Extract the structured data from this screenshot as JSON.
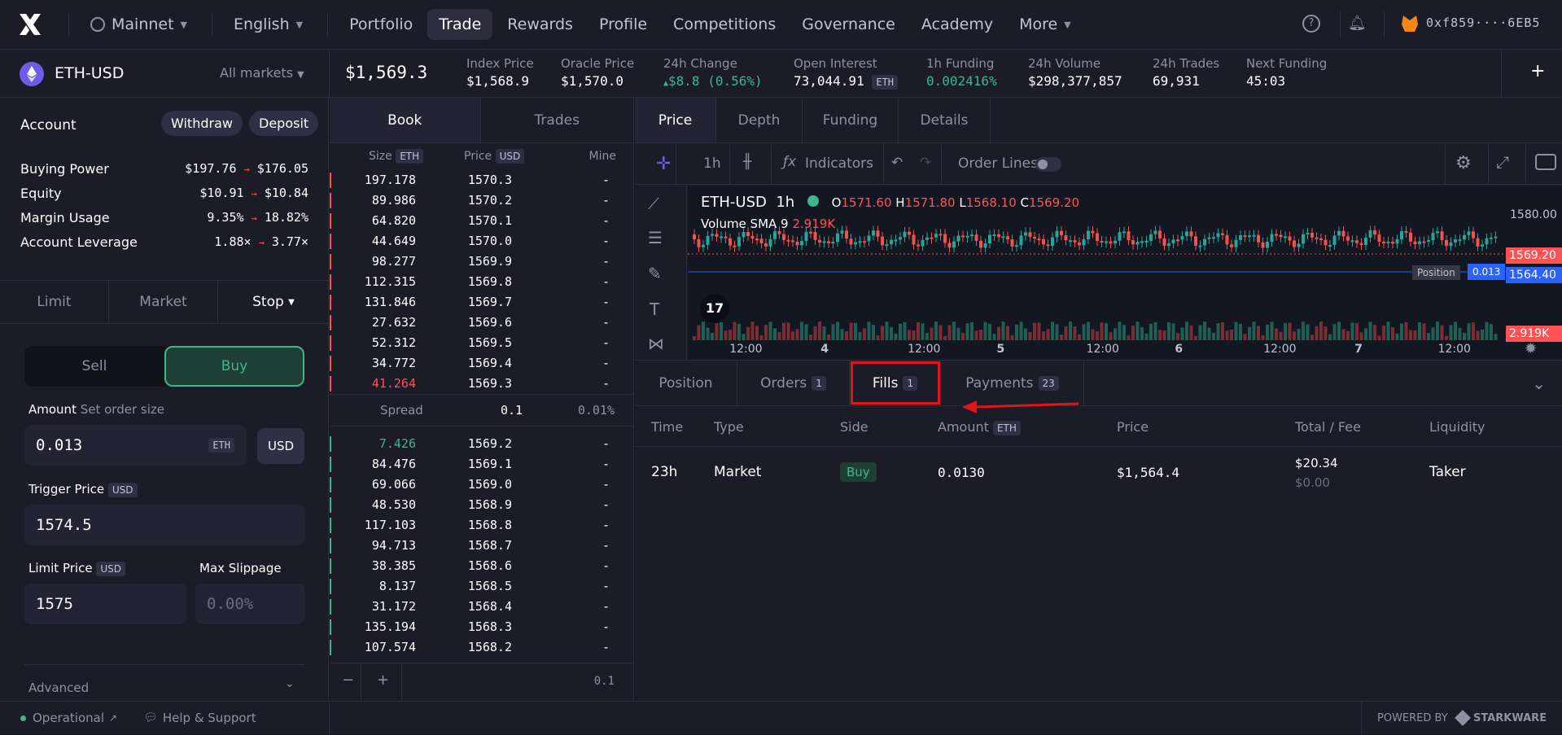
{
  "nav": {
    "network": "Mainnet",
    "language": "English",
    "items": [
      "Portfolio",
      "Trade",
      "Rewards",
      "Profile",
      "Competitions",
      "Governance",
      "Academy",
      "More"
    ],
    "active": "Trade",
    "wallet": "0xf859····6EB5"
  },
  "market": {
    "symbol": "ETH-USD",
    "all_markets": "All markets",
    "price": "$1,569.3",
    "stats": [
      {
        "label": "Index Price",
        "value": "$1,568.9"
      },
      {
        "label": "Oracle Price",
        "value": "$1,570.0"
      },
      {
        "label": "24h Change",
        "value": "$8.8 (0.56%)"
      },
      {
        "label": "Open Interest",
        "value": "73,044.91",
        "unit": "ETH"
      },
      {
        "label": "1h Funding",
        "value": "0.002416%"
      },
      {
        "label": "24h Volume",
        "value": "$298,377,857"
      },
      {
        "label": "24h Trades",
        "value": "69,931"
      },
      {
        "label": "Next Funding",
        "value": "45:03"
      }
    ]
  },
  "account": {
    "title": "Account",
    "withdraw": "Withdraw",
    "deposit": "Deposit",
    "rows": [
      {
        "label": "Buying Power",
        "from": "$197.76",
        "to": "$176.05"
      },
      {
        "label": "Equity",
        "from": "$10.91",
        "to": "$10.84"
      },
      {
        "label": "Margin Usage",
        "from": "9.35%",
        "to": "18.82%"
      },
      {
        "label": "Account Leverage",
        "from": "1.88×",
        "to": "3.77×"
      }
    ]
  },
  "order": {
    "tabs": [
      "Limit",
      "Market",
      "Stop"
    ],
    "sell": "Sell",
    "buy": "Buy",
    "amount_label": "Amount",
    "amount_hint": "Set order size",
    "amount": "0.013",
    "amount_unit": "ETH",
    "usd": "USD",
    "trigger_label": "Trigger Price",
    "trigger_unit": "USD",
    "trigger": "1574.5",
    "limit_label": "Limit Price",
    "limit_unit": "USD",
    "limit": "1575",
    "slippage_label": "Max Slippage",
    "slippage_placeholder": "0.00%",
    "advanced": "Advanced"
  },
  "book": {
    "tabs": [
      "Book",
      "Trades"
    ],
    "headers": {
      "size": "Size",
      "size_unit": "ETH",
      "price": "Price",
      "price_unit": "USD",
      "mine": "Mine"
    },
    "asks": [
      [
        "197.178",
        "1570.3"
      ],
      [
        "89.986",
        "1570.2"
      ],
      [
        "64.820",
        "1570.1"
      ],
      [
        "44.649",
        "1570.0"
      ],
      [
        "98.277",
        "1569.9"
      ],
      [
        "112.315",
        "1569.8"
      ],
      [
        "131.846",
        "1569.7"
      ],
      [
        "27.632",
        "1569.6"
      ],
      [
        "52.312",
        "1569.5"
      ],
      [
        "34.772",
        "1569.4"
      ],
      [
        "41.264",
        "1569.3"
      ]
    ],
    "spread": {
      "label": "Spread",
      "value": "0.1",
      "pct": "0.01%"
    },
    "bids": [
      [
        "7.426",
        "1569.2"
      ],
      [
        "84.476",
        "1569.1"
      ],
      [
        "69.066",
        "1569.0"
      ],
      [
        "48.530",
        "1568.9"
      ],
      [
        "117.103",
        "1568.8"
      ],
      [
        "94.713",
        "1568.7"
      ],
      [
        "38.385",
        "1568.6"
      ],
      [
        "8.137",
        "1568.5"
      ],
      [
        "31.172",
        "1568.4"
      ],
      [
        "135.194",
        "1568.3"
      ],
      [
        "107.574",
        "1568.2"
      ]
    ],
    "mine": "-",
    "step": "0.1"
  },
  "chart": {
    "tabs": [
      "Price",
      "Depth",
      "Funding",
      "Details"
    ],
    "interval": "1h",
    "indicators": "Indicators",
    "order_lines": "Order Lines",
    "title": "ETH-USD",
    "o": "1571.60",
    "h": "1571.80",
    "l": "1568.10",
    "c": "1569.20",
    "vol_label": "Volume SMA 9",
    "vol": "2.919K",
    "price_axis": [
      "1580.00",
      "1569.20",
      "1564.40",
      "2.919K"
    ],
    "position_label": "Position",
    "position_val": "0.013",
    "time_axis": [
      "12:00",
      "4",
      "12:00",
      "5",
      "12:00",
      "6",
      "12:00",
      "7",
      "12:00"
    ]
  },
  "bottom": {
    "tabs": [
      {
        "label": "Position"
      },
      {
        "label": "Orders",
        "count": "1"
      },
      {
        "label": "Fills",
        "count": "1"
      },
      {
        "label": "Payments",
        "count": "23"
      }
    ],
    "columns": [
      "Time",
      "Type",
      "Side",
      "Amount",
      "Price",
      "Total / Fee",
      "Liquidity"
    ],
    "amount_unit": "ETH",
    "fill": {
      "time": "23h",
      "type": "Market",
      "side": "Buy",
      "amount": "0.0130",
      "price": "$1,564.4",
      "total": "$20.34",
      "fee": "$0.00",
      "liquidity": "Taker"
    }
  },
  "footer": {
    "status": "Operational",
    "support": "Help & Support",
    "powered": "POWERED BY",
    "brand": "STARKWARE"
  },
  "colors": {
    "green": "#3fb68b",
    "red": "#ff5353",
    "bg": "#1c1c28",
    "highlight": "#e0151b"
  }
}
